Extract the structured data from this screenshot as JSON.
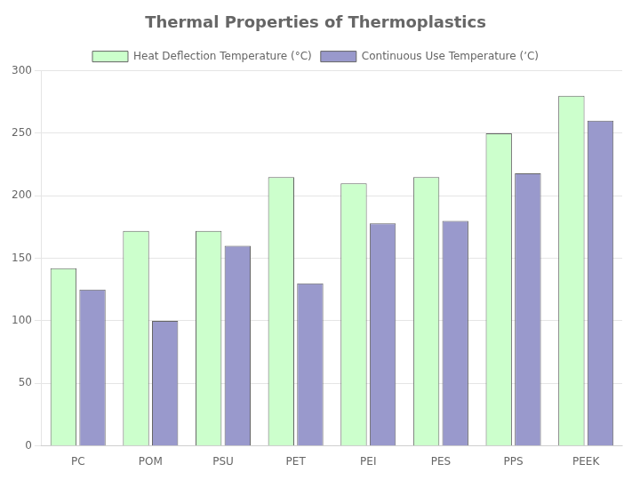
{
  "chart_data": {
    "type": "bar",
    "title": "Thermal Properties of Thermoplastics",
    "categories": [
      "PC",
      "POM",
      "PSU",
      "PET",
      "PEI",
      "PES",
      "PPS",
      "PEEK"
    ],
    "series": [
      {
        "name": "Heat Deflection Temperature (°C)",
        "color": "#ccffcc",
        "values": [
          142,
          172,
          172,
          215,
          210,
          215,
          250,
          280
        ]
      },
      {
        "name": "Continuous Use Temperature (ʼC)",
        "color": "#9999cc",
        "values": [
          125,
          100,
          160,
          130,
          178,
          180,
          218,
          260
        ]
      }
    ],
    "ylim": [
      0,
      300
    ],
    "yticks": [
      0,
      50,
      100,
      150,
      200,
      250,
      300
    ],
    "grid": true,
    "legend": "top"
  }
}
